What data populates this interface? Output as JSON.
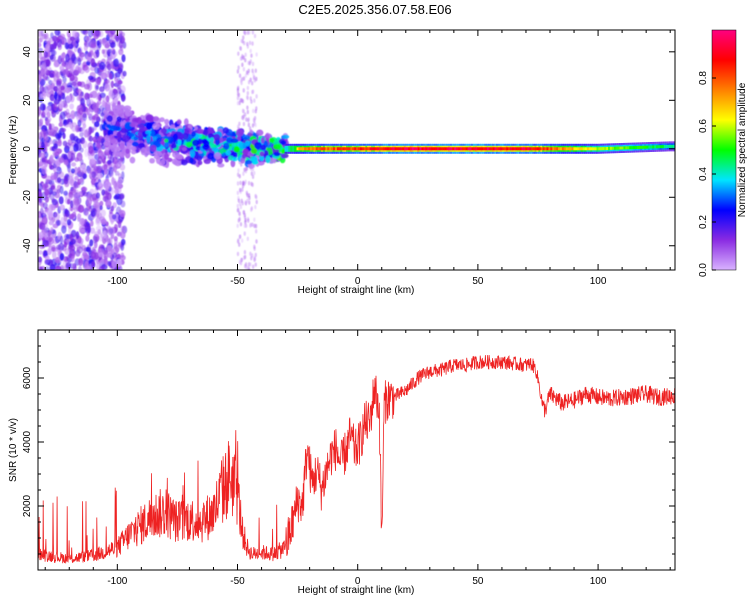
{
  "title": "C2E5.2025.356.07.58.E06",
  "chart_data": [
    {
      "type": "heatmap",
      "title": "C2E5.2025.356.07.58.E06",
      "xlabel": "Height of straight line (km)",
      "ylabel": "Frequency (Hz)",
      "xlim": [
        -133,
        132
      ],
      "ylim": [
        -50,
        49
      ],
      "xticks": [
        -100,
        -50,
        0,
        50,
        100
      ],
      "xtick_labels": [
        "-100",
        "-50",
        "0",
        "50",
        "100"
      ],
      "yticks": [
        -40,
        -20,
        0,
        20,
        40
      ],
      "ytick_labels": [
        "-40",
        "-20",
        "0",
        "20",
        "40"
      ],
      "colorbar": {
        "label": "Normalized spectral amplitude",
        "range": [
          0,
          1
        ],
        "ticks": [
          0.0,
          0.2,
          0.4,
          0.6,
          0.8
        ],
        "tick_labels": [
          "0.0",
          "0.2",
          "0.4",
          "0.6",
          "0.8"
        ],
        "colormap": [
          "#d9b3ff",
          "#8a2be2",
          "#0000ff",
          "#00e5ff",
          "#00ff00",
          "#ffff00",
          "#ff8000",
          "#ff0000",
          "#ff0080"
        ]
      },
      "ridge": [
        {
          "x": -100,
          "freq": 8,
          "amp": 0.3
        },
        {
          "x": -80,
          "freq": 3,
          "amp": 0.4
        },
        {
          "x": -60,
          "freq": 2,
          "amp": 0.45
        },
        {
          "x": -40,
          "freq": 0,
          "amp": 0.5
        },
        {
          "x": -30,
          "freq": 0,
          "amp": 0.6
        },
        {
          "x": -20,
          "freq": 0,
          "amp": 0.8
        },
        {
          "x": 0,
          "freq": 0,
          "amp": 0.85
        },
        {
          "x": 20,
          "freq": 0,
          "amp": 0.95
        },
        {
          "x": 70,
          "freq": 0,
          "amp": 0.92
        },
        {
          "x": 100,
          "freq": 0,
          "amp": 0.6
        },
        {
          "x": 130,
          "freq": 1,
          "amp": 0.45
        }
      ]
    },
    {
      "type": "line",
      "xlabel": "Height of straight line (km)",
      "ylabel": "SNR (10 * v/v)",
      "xlim": [
        -133,
        132
      ],
      "ylim": [
        0,
        7500
      ],
      "xticks": [
        -100,
        -50,
        0,
        50,
        100
      ],
      "xtick_labels": [
        "-100",
        "-50",
        "0",
        "50",
        "100"
      ],
      "yticks": [
        2000,
        4000,
        6000
      ],
      "ytick_labels": [
        "2000",
        "4000",
        "6000"
      ],
      "color": "#ee2222",
      "series": [
        {
          "name": "SNR",
          "x": [
            -133,
            -120,
            -110,
            -100,
            -95,
            -90,
            -85,
            -80,
            -75,
            -70,
            -65,
            -60,
            -56,
            -53,
            -50,
            -48,
            -46,
            -44,
            -40,
            -35,
            -30,
            -27,
            -25,
            -23,
            -21,
            -19,
            -17,
            -15,
            -13,
            -11,
            -9,
            -7,
            -5,
            -3,
            -1,
            1,
            3,
            5,
            7,
            9,
            10,
            11,
            13,
            15,
            20,
            25,
            30,
            35,
            40,
            45,
            50,
            55,
            60,
            65,
            70,
            72,
            74,
            76,
            77,
            78,
            80,
            85,
            90,
            95,
            100,
            105,
            110,
            115,
            120,
            125,
            132
          ],
          "y": [
            500,
            350,
            450,
            700,
            1100,
            1400,
            1700,
            1800,
            1500,
            1600,
            1500,
            1800,
            2500,
            3000,
            2400,
            1200,
            700,
            500,
            550,
            500,
            700,
            1500,
            2200,
            2000,
            3800,
            2700,
            3100,
            2500,
            3100,
            3600,
            3800,
            3300,
            3700,
            4200,
            3700,
            4000,
            4600,
            4600,
            5700,
            5000,
            800,
            5200,
            5400,
            5400,
            5600,
            6000,
            6200,
            6250,
            6400,
            6400,
            6500,
            6500,
            6500,
            6450,
            6400,
            6450,
            6300,
            5600,
            5100,
            5000,
            5500,
            5200,
            5300,
            5500,
            5400,
            5350,
            5400,
            5450,
            5500,
            5400,
            5450
          ]
        }
      ]
    }
  ]
}
